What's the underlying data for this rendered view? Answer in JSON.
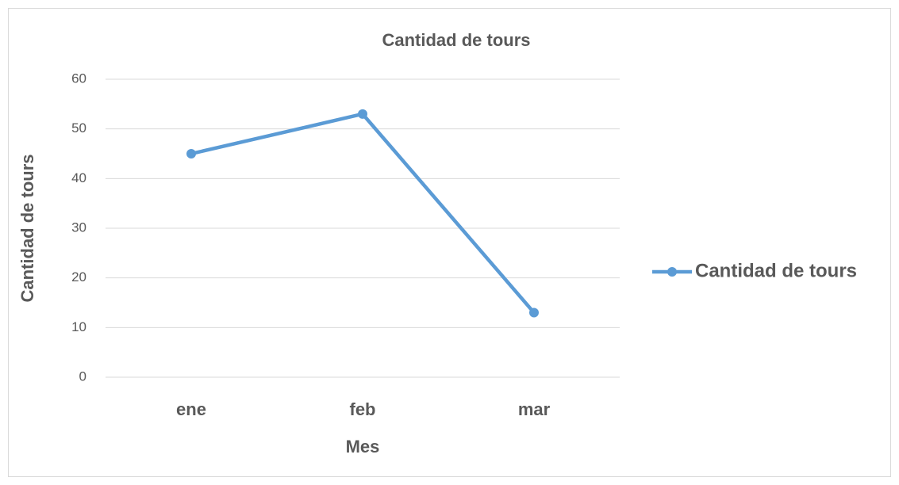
{
  "chart_data": {
    "type": "line",
    "title": "Cantidad de tours",
    "x_label": "Mes",
    "y_label": "Cantidad de tours",
    "categories": [
      "ene",
      "feb",
      "mar"
    ],
    "series": [
      {
        "name": "Cantidad de tours",
        "color": "#5b9bd5",
        "values": [
          45,
          53,
          13
        ]
      }
    ],
    "ylim": [
      0,
      60
    ],
    "yticks": [
      0,
      10,
      20,
      30,
      40,
      50,
      60
    ],
    "grid": true,
    "legend": "right"
  }
}
